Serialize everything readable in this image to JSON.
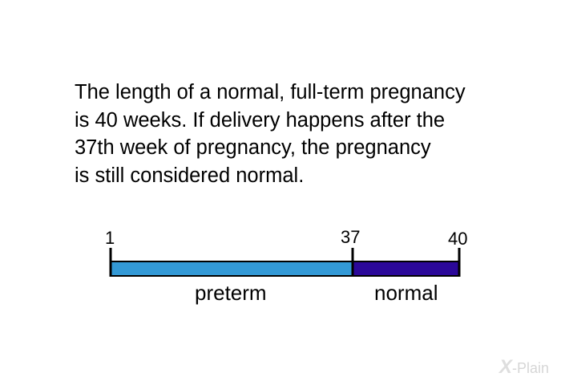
{
  "paragraph": {
    "lines": [
      "The length of a normal, full-term pregnancy",
      "is 40 weeks. If delivery happens after the",
      "37th week of pregnancy, the pregnancy",
      "is still considered normal."
    ]
  },
  "timeline": {
    "start_week": 1,
    "boundary_week": 37,
    "end_week": 40,
    "ticks": [
      "1",
      "37",
      "40"
    ],
    "segments": [
      {
        "label": "preterm",
        "from": 1,
        "to": 37,
        "color": "#3399d6"
      },
      {
        "label": "normal",
        "from": 37,
        "to": 40,
        "color": "#2b0899"
      }
    ]
  },
  "logo": {
    "mark": "X",
    "text": "-Plain"
  }
}
